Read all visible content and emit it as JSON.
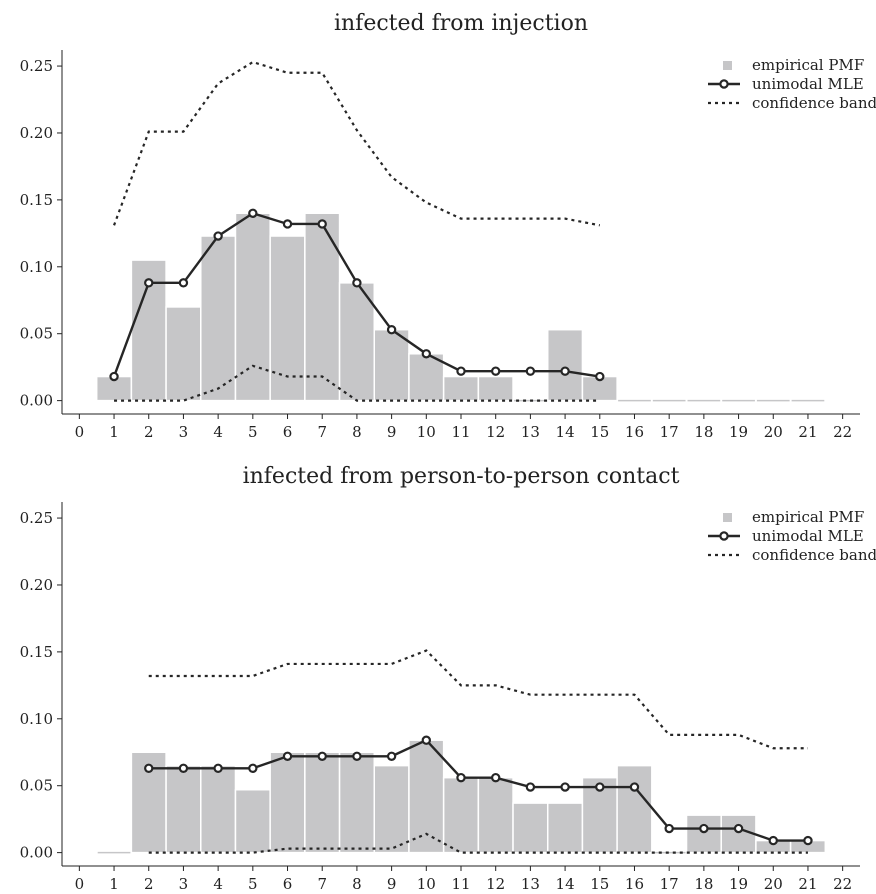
{
  "chart_data": [
    {
      "type": "bar",
      "title": "infected from injection",
      "xlim": [
        -0.5,
        22.5
      ],
      "ylim": [
        -0.01,
        0.262
      ],
      "x_ticks": [
        0,
        1,
        2,
        3,
        4,
        5,
        6,
        7,
        8,
        9,
        10,
        11,
        12,
        13,
        14,
        15,
        16,
        17,
        18,
        19,
        20,
        21,
        22
      ],
      "y_ticks": [
        "0.00",
        "0.05",
        "0.10",
        "0.15",
        "0.20",
        "0.25"
      ],
      "legend": {
        "placement": "top-right",
        "entries": [
          "empirical PMF",
          "unimodal MLE",
          "confidence band"
        ]
      },
      "empirical_pmf": {
        "x": [
          1,
          2,
          3,
          4,
          5,
          6,
          7,
          8,
          9,
          10,
          11,
          12,
          13,
          14,
          15,
          16,
          17,
          18,
          19,
          20,
          21
        ],
        "values": [
          0.018,
          0.105,
          0.07,
          0.123,
          0.14,
          0.123,
          0.14,
          0.088,
          0.053,
          0.035,
          0.018,
          0.018,
          0.0,
          0.053,
          0.018,
          0.0,
          0.0,
          0.0,
          0.0,
          0.0,
          0.0
        ]
      },
      "unimodal_mle": {
        "x": [
          1,
          2,
          3,
          4,
          5,
          6,
          7,
          8,
          9,
          10,
          11,
          12,
          13,
          14,
          15
        ],
        "values": [
          0.018,
          0.088,
          0.088,
          0.123,
          0.14,
          0.132,
          0.132,
          0.088,
          0.053,
          0.035,
          0.022,
          0.022,
          0.022,
          0.022,
          0.018
        ]
      },
      "band_upper": {
        "x": [
          1,
          2,
          3,
          4,
          5,
          6,
          7,
          8,
          9,
          10,
          11,
          12,
          13,
          14,
          15
        ],
        "values": [
          0.131,
          0.201,
          0.201,
          0.237,
          0.253,
          0.245,
          0.245,
          0.202,
          0.167,
          0.148,
          0.136,
          0.136,
          0.136,
          0.136,
          0.131
        ]
      },
      "band_lower": {
        "x": [
          1,
          2,
          3,
          4,
          5,
          6,
          7,
          8,
          9,
          10,
          11,
          12,
          13,
          14,
          15
        ],
        "values": [
          0.0,
          0.0,
          0.0,
          0.009,
          0.026,
          0.018,
          0.018,
          0.0,
          0.0,
          0.0,
          0.0,
          0.0,
          0.0,
          0.0,
          0.0
        ]
      }
    },
    {
      "type": "bar",
      "title": "infected from person-to-person contact",
      "xlim": [
        -0.5,
        22.5
      ],
      "ylim": [
        -0.01,
        0.262
      ],
      "x_ticks": [
        0,
        1,
        2,
        3,
        4,
        5,
        6,
        7,
        8,
        9,
        10,
        11,
        12,
        13,
        14,
        15,
        16,
        17,
        18,
        19,
        20,
        21,
        22
      ],
      "y_ticks": [
        "0.00",
        "0.05",
        "0.10",
        "0.15",
        "0.20",
        "0.25"
      ],
      "legend": {
        "placement": "top-right",
        "entries": [
          "empirical PMF",
          "unimodal MLE",
          "confidence band"
        ]
      },
      "empirical_pmf": {
        "x": [
          1,
          2,
          3,
          4,
          5,
          6,
          7,
          8,
          9,
          10,
          11,
          12,
          13,
          14,
          15,
          16,
          17,
          18,
          19,
          20,
          21
        ],
        "values": [
          0.0,
          0.075,
          0.065,
          0.065,
          0.047,
          0.075,
          0.075,
          0.075,
          0.065,
          0.084,
          0.056,
          0.056,
          0.037,
          0.037,
          0.056,
          0.065,
          0.0,
          0.028,
          0.028,
          0.009,
          0.009
        ]
      },
      "unimodal_mle": {
        "x": [
          2,
          3,
          4,
          5,
          6,
          7,
          8,
          9,
          10,
          11,
          12,
          13,
          14,
          15,
          16,
          17,
          18,
          19,
          20,
          21
        ],
        "values": [
          0.063,
          0.063,
          0.063,
          0.063,
          0.072,
          0.072,
          0.072,
          0.072,
          0.084,
          0.056,
          0.056,
          0.049,
          0.049,
          0.049,
          0.049,
          0.018,
          0.018,
          0.018,
          0.009,
          0.009
        ]
      },
      "band_upper": {
        "x": [
          2,
          3,
          4,
          5,
          6,
          7,
          8,
          9,
          10,
          11,
          12,
          13,
          14,
          15,
          16,
          17,
          18,
          19,
          20,
          21
        ],
        "values": [
          0.132,
          0.132,
          0.132,
          0.132,
          0.141,
          0.141,
          0.141,
          0.141,
          0.151,
          0.125,
          0.125,
          0.118,
          0.118,
          0.118,
          0.118,
          0.088,
          0.088,
          0.088,
          0.078,
          0.078
        ]
      },
      "band_lower": {
        "x": [
          2,
          3,
          4,
          5,
          6,
          7,
          8,
          9,
          10,
          11,
          12,
          13,
          14,
          15,
          16,
          17,
          18,
          19,
          20,
          21
        ],
        "values": [
          0.0,
          0.0,
          0.0,
          0.0,
          0.003,
          0.003,
          0.003,
          0.003,
          0.014,
          0.0,
          0.0,
          0.0,
          0.0,
          0.0,
          0.0,
          0.0,
          0.0,
          0.0,
          0.0,
          0.0
        ]
      }
    }
  ]
}
